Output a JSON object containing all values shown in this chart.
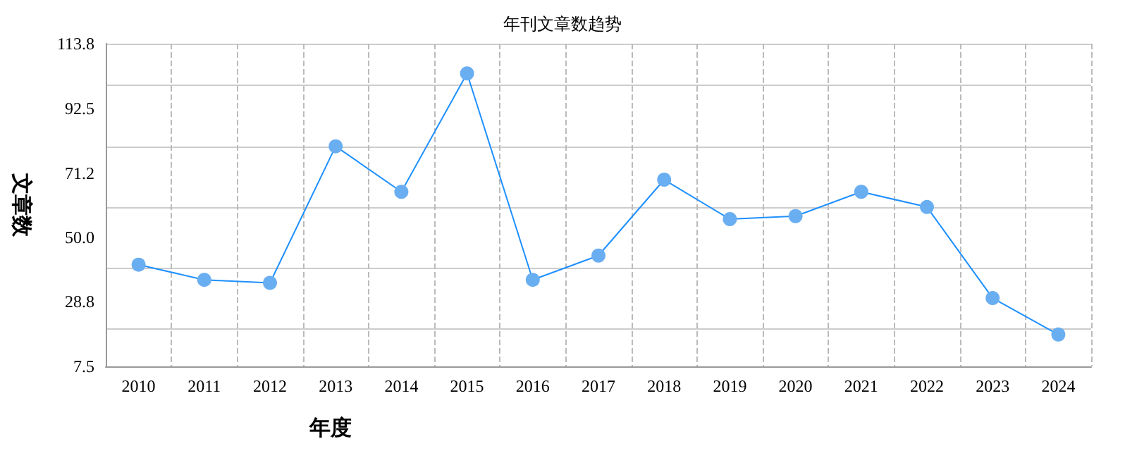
{
  "chart_data": {
    "type": "line",
    "title": "年刊文章数趋势",
    "xlabel": "年度",
    "ylabel": "文章数",
    "categories": [
      "2010",
      "2011",
      "2012",
      "2013",
      "2014",
      "2015",
      "2016",
      "2017",
      "2018",
      "2019",
      "2020",
      "2021",
      "2022",
      "2023",
      "2024"
    ],
    "series": [
      {
        "color": "#1e90ff",
        "values": [
          41,
          36,
          35,
          80,
          65,
          104,
          36,
          44,
          69,
          56,
          57,
          65,
          60,
          30,
          18
        ]
      }
    ],
    "ylim": [
      7.5,
      113.8
    ],
    "yticks": [
      7.5,
      28.8,
      {
        "value": 50,
        "label": "50.0"
      },
      71.2,
      92.5,
      113.8
    ],
    "grid": true,
    "marker": "circle",
    "line_style": "solid"
  }
}
